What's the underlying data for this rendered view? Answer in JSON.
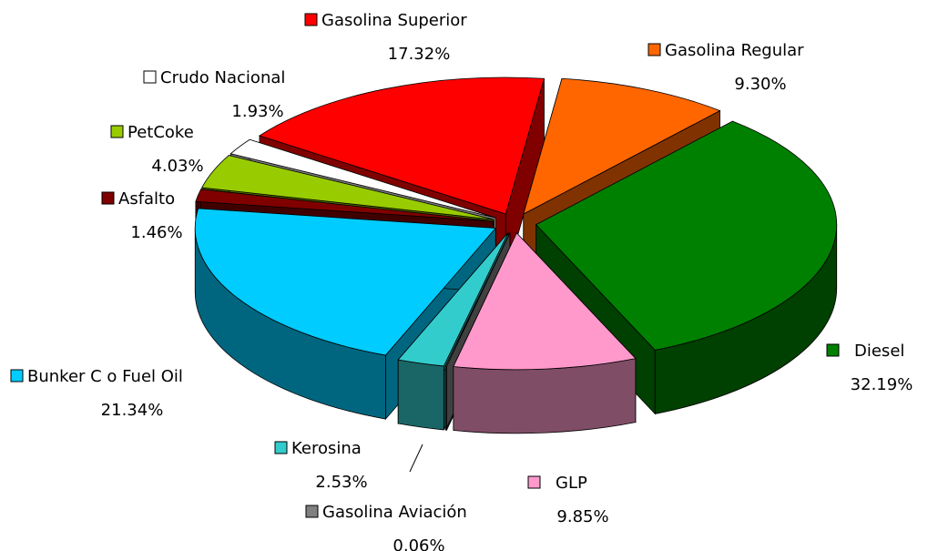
{
  "chart_data": {
    "type": "pie",
    "categories": [
      "Gasolina Superior",
      "Gasolina Regular",
      "Diesel",
      "GLP",
      "Gasolina Aviación",
      "Kerosina",
      "Bunker C o Fuel Oil",
      "Asfalto",
      "PetCoke",
      "Crudo Nacional"
    ],
    "values": [
      17.32,
      9.3,
      32.19,
      9.85,
      0.06,
      2.53,
      21.34,
      1.46,
      4.03,
      1.93
    ],
    "value_labels": [
      "17.32%",
      "9.30%",
      "32.19%",
      "9.85%",
      "0.06%",
      "2.53%",
      "21.34%",
      "1.46%",
      "4.03%",
      "1.93%"
    ],
    "colors": [
      "#ff0000",
      "#ff6600",
      "#008000",
      "#ff99cc",
      "#808080",
      "#33cccc",
      "#00ccff",
      "#800000",
      "#99cc00",
      "#ffffff"
    ]
  }
}
